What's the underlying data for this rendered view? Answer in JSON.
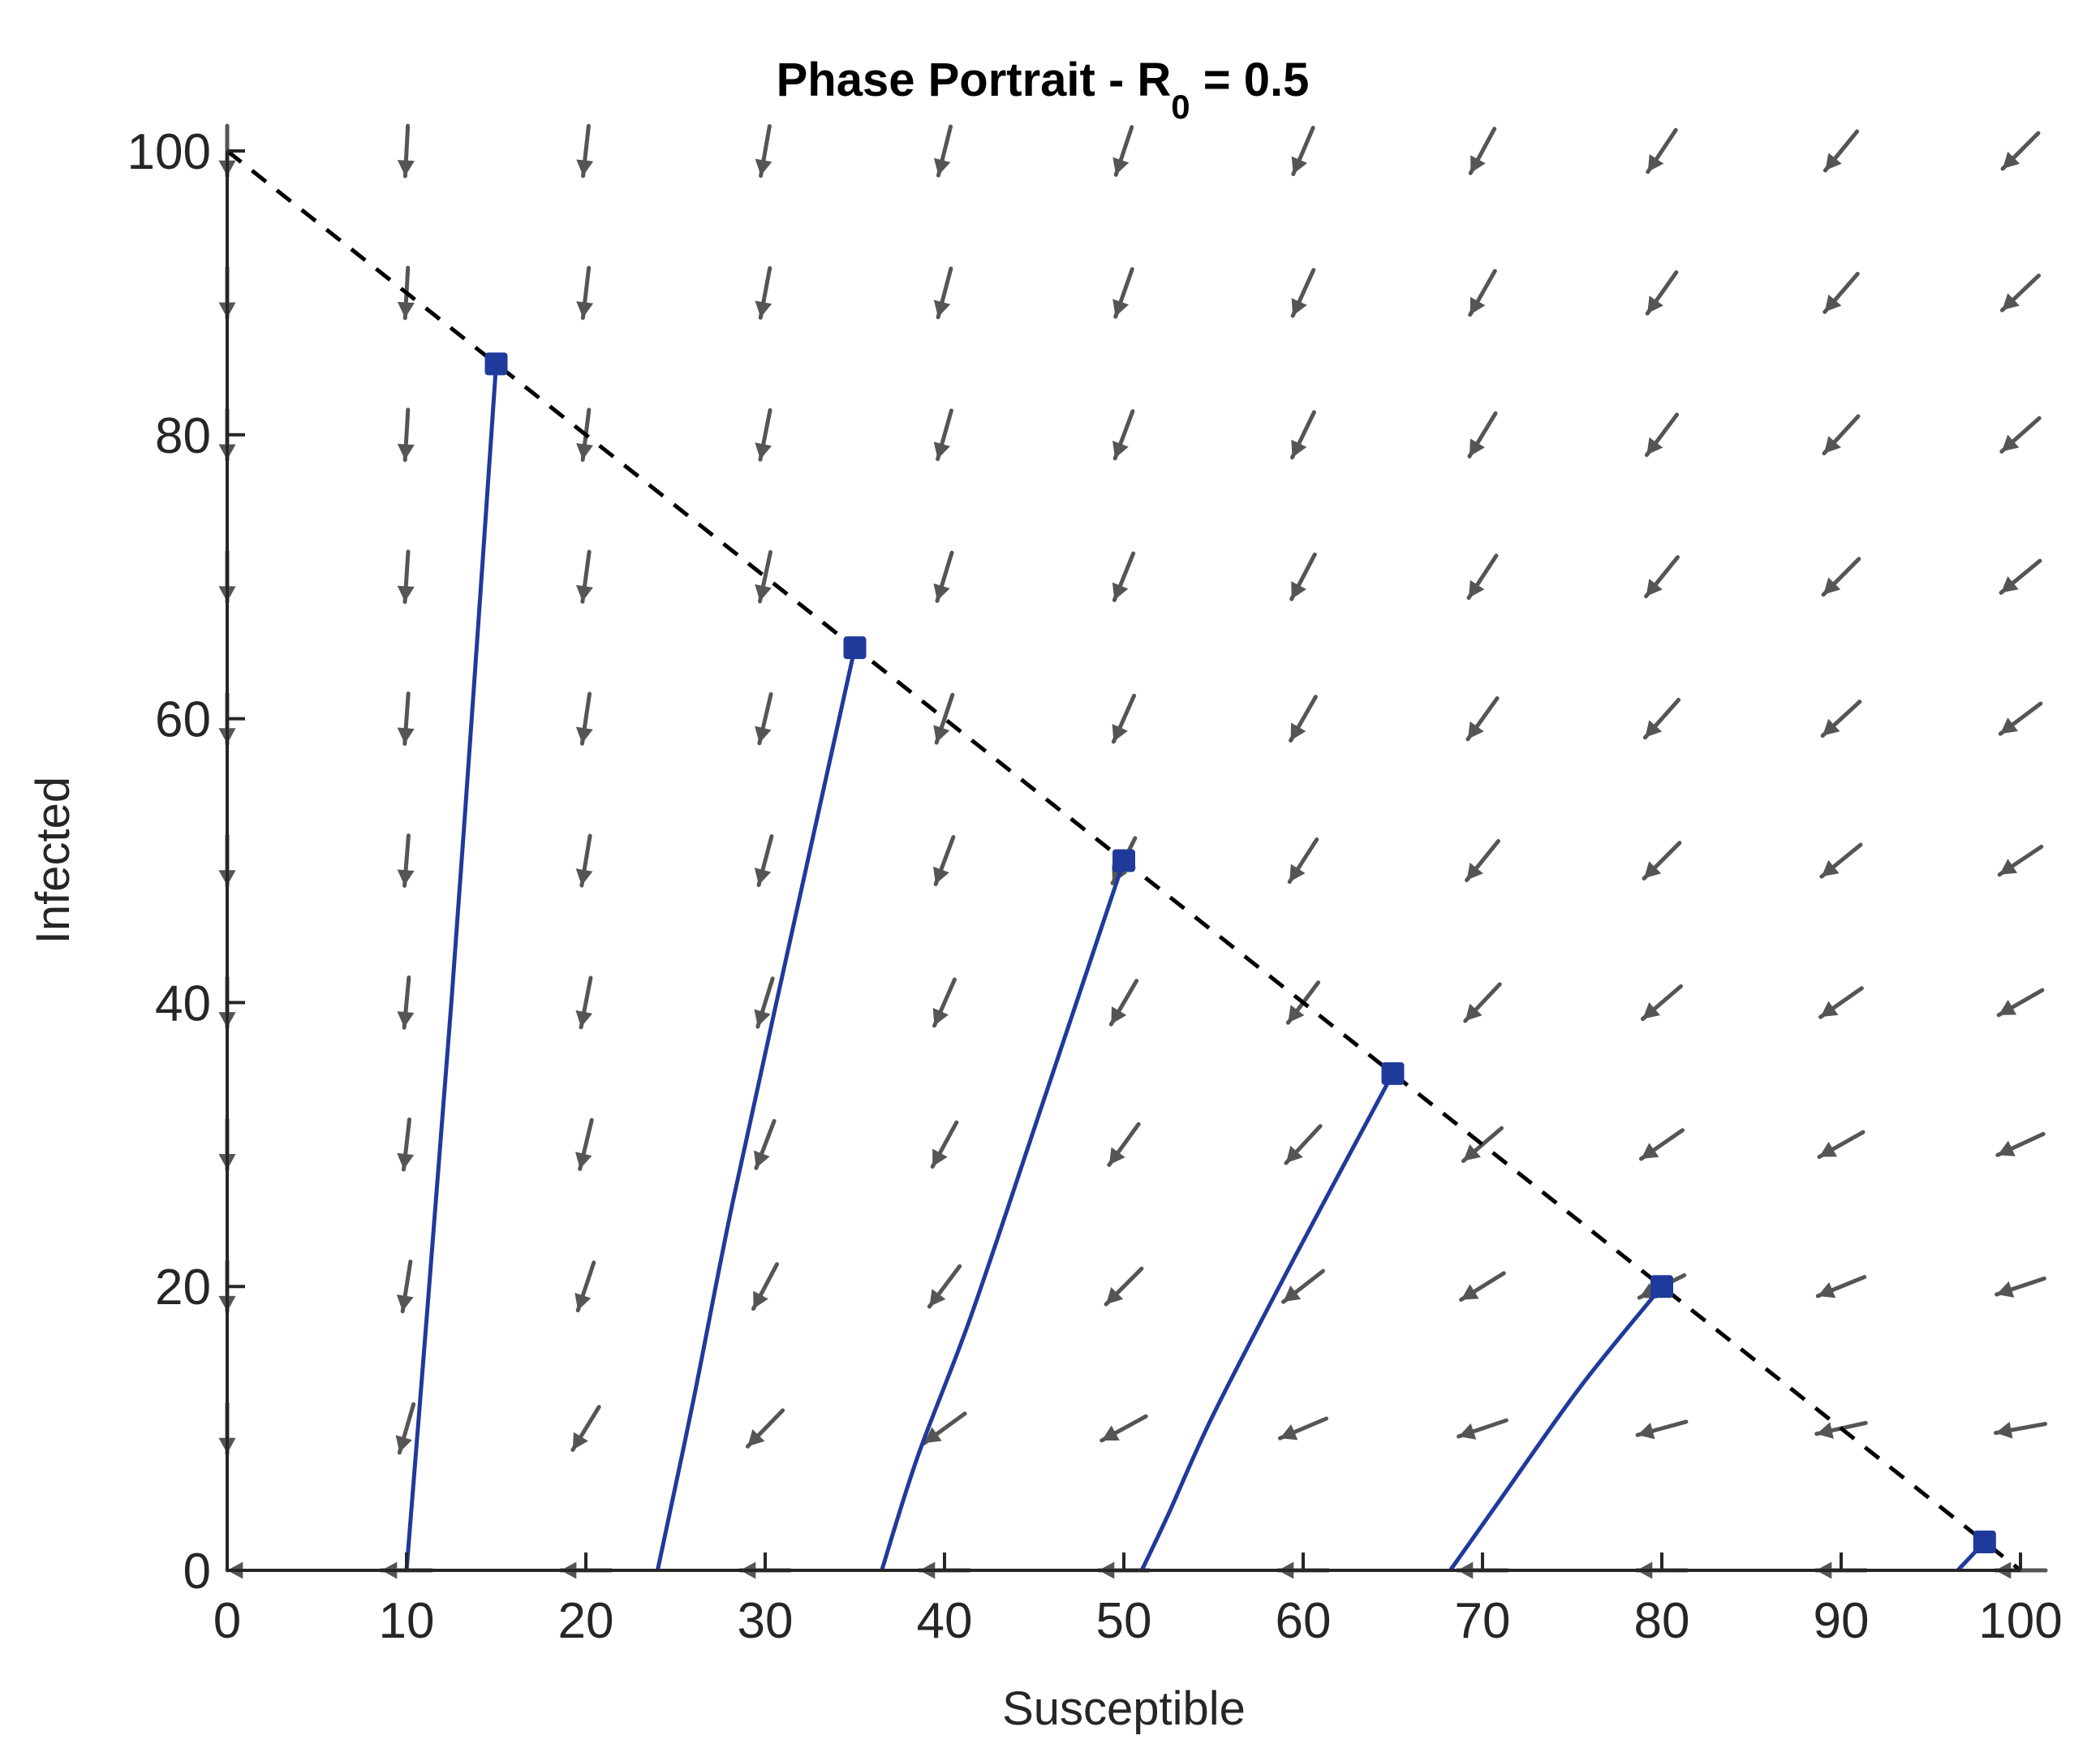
{
  "chart_data": {
    "type": "line",
    "title": {
      "prefix": "Phase Portrait - R",
      "subscript": "0",
      "suffix": " = 0.5"
    },
    "xlabel": "Susceptible",
    "ylabel": "Infected",
    "xlim": [
      0,
      100
    ],
    "ylim": [
      0,
      100
    ],
    "xticks": [
      "0",
      "10",
      "20",
      "30",
      "40",
      "50",
      "60",
      "70",
      "80",
      "90",
      "100"
    ],
    "yticks": [
      "0",
      "20",
      "40",
      "60",
      "80",
      "100"
    ],
    "grid": false,
    "colors": {
      "trajectory": "#1f3a9a",
      "arrow": "#555555",
      "boundary": "#000000",
      "axes": "#262626"
    },
    "boundary_line": {
      "style": "dashed",
      "x": [
        0,
        100
      ],
      "y": [
        100,
        0
      ]
    },
    "vector_field": {
      "x": [
        0,
        10,
        20,
        30,
        40,
        50,
        60,
        70,
        80,
        90,
        100
      ],
      "y": [
        0,
        10,
        20,
        30,
        40,
        50,
        60,
        70,
        80,
        90,
        100
      ],
      "R0": 0.5
    },
    "series": [
      {
        "x": [
          15,
          13.8,
          12.5,
          11.2,
          10
        ],
        "y": [
          85,
          63,
          40,
          19,
          0
        ]
      },
      {
        "x": [
          35,
          31.5,
          28.2,
          26,
          24
        ],
        "y": [
          65,
          45,
          26,
          12,
          0
        ]
      },
      {
        "x": [
          50,
          45.5,
          41.5,
          38.5,
          36.5
        ],
        "y": [
          50,
          33,
          18,
          8,
          0
        ]
      },
      {
        "x": [
          65,
          59.5,
          55,
          52.5,
          51
        ],
        "y": [
          35,
          22,
          11,
          4,
          0
        ]
      },
      {
        "x": [
          80,
          75.5,
          71,
          68.2
        ],
        "y": [
          20,
          13,
          5,
          0
        ]
      },
      {
        "x": [
          98,
          96.5
        ],
        "y": [
          2,
          0
        ]
      }
    ]
  }
}
